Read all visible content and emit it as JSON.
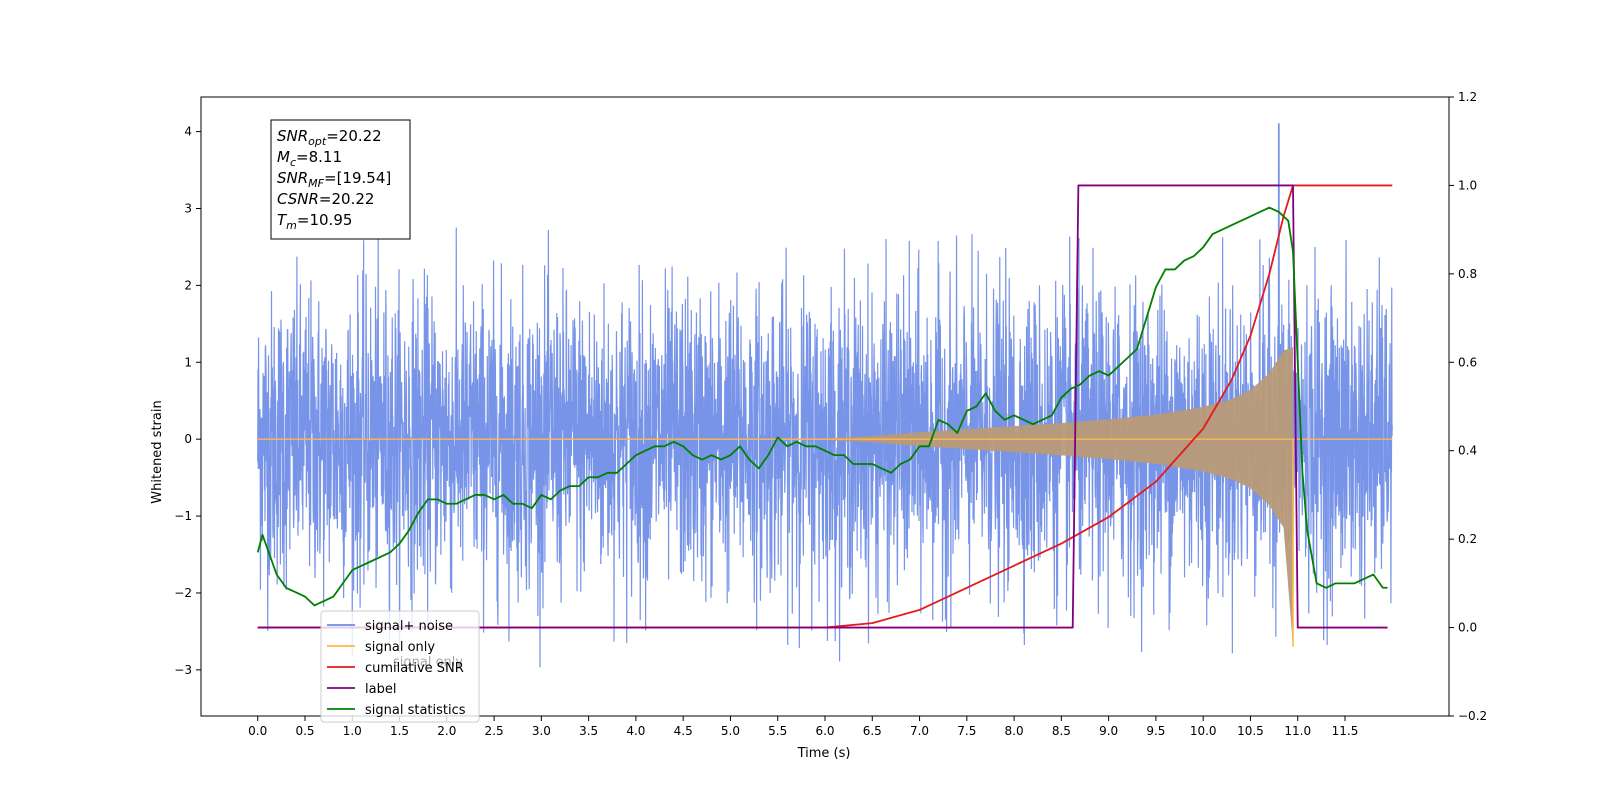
{
  "chart_data": {
    "type": "line",
    "xlabel": "Time (s)",
    "ylabel": "Whitened strain",
    "xlim": [
      -0.6,
      12.6
    ],
    "ylim": [
      -3.6,
      4.45
    ],
    "y2lim": [
      -0.2,
      1.2
    ],
    "x_ticks": [
      0.0,
      0.5,
      1.0,
      1.5,
      2.0,
      2.5,
      3.0,
      3.5,
      4.0,
      4.5,
      5.0,
      5.5,
      6.0,
      6.5,
      7.0,
      7.5,
      8.0,
      8.5,
      9.0,
      9.5,
      10.0,
      10.5,
      11.0,
      11.5
    ],
    "x_tick_labels": [
      "0.0",
      "0.5",
      "1.0",
      "1.5",
      "2.0",
      "2.5",
      "3.0",
      "3.5",
      "4.0",
      "4.5",
      "5.0",
      "5.5",
      "6.0",
      "6.5",
      "7.0",
      "7.5",
      "8.0",
      "8.5",
      "9.0",
      "9.5",
      "10.0",
      "10.5",
      "11.0",
      "11.5"
    ],
    "y_ticks": [
      -3,
      -2,
      -1,
      0,
      1,
      2,
      3,
      4
    ],
    "y_tick_labels": [
      "−3",
      "−2",
      "−1",
      "0",
      "1",
      "2",
      "3",
      "4"
    ],
    "y2_ticks": [
      -0.2,
      0.0,
      0.2,
      0.4,
      0.6,
      0.8,
      1.0,
      1.2
    ],
    "y2_tick_labels": [
      "−0.2",
      "0.0",
      "0.2",
      "0.4",
      "0.6",
      "0.8",
      "1.0",
      "1.2"
    ],
    "grid": false,
    "legend_position": "lower-left",
    "colors": {
      "signal_noise": "#6b8be6",
      "signal_only": "#ffb74d",
      "cumulative_snr": "#e41a1c",
      "label": "#800080",
      "statistics": "#008000"
    },
    "annotation": {
      "lines": [
        {
          "base": "SNR",
          "sub": "opt",
          "value": "=20.22"
        },
        {
          "base": "M",
          "sub": "c",
          "value": "=8.11"
        },
        {
          "base": "SNR",
          "sub": "MF",
          "value": "=[19.54]"
        },
        {
          "base": "CSNR",
          "sub": "",
          "value": "=20.22"
        },
        {
          "base": "T",
          "sub": "m",
          "value": "=10.95"
        }
      ]
    },
    "series": [
      {
        "name": "signal+ noise",
        "axis": "left",
        "note": "noisy whitened strain spanning 0 to 12 s, amplitude about -2.6 to 2.6 with peaks near 4.1 at 10.8 s",
        "x_range": [
          0.0,
          12.0
        ],
        "typical_amplitude": 1.2,
        "max_peak": {
          "x": 10.8,
          "y": 4.1
        }
      },
      {
        "name": "signal only",
        "axis": "left",
        "envelope": {
          "x": [
            0.0,
            6.0,
            6.5,
            7.0,
            7.5,
            8.0,
            8.5,
            9.0,
            9.5,
            10.0,
            10.3,
            10.5,
            10.7,
            10.85,
            10.95
          ],
          "y": [
            0.0,
            0.01,
            0.04,
            0.09,
            0.13,
            0.17,
            0.21,
            0.26,
            0.32,
            0.42,
            0.52,
            0.64,
            0.86,
            1.15,
            2.7
          ]
        },
        "end_x": 11.0
      },
      {
        "name": "cumilative SNR",
        "axis": "right",
        "x": [
          0.0,
          6.0,
          6.5,
          7.0,
          7.5,
          8.0,
          8.5,
          9.0,
          9.5,
          10.0,
          10.3,
          10.5,
          10.7,
          10.85,
          10.95,
          12.0
        ],
        "y": [
          0.0,
          0.0,
          0.01,
          0.04,
          0.09,
          0.14,
          0.19,
          0.25,
          0.33,
          0.45,
          0.56,
          0.66,
          0.8,
          0.93,
          1.0,
          1.0
        ]
      },
      {
        "name": "label",
        "axis": "right",
        "x": [
          0.0,
          8.62,
          8.68,
          10.95,
          11.0,
          11.95
        ],
        "y": [
          0.0,
          0.0,
          1.0,
          1.0,
          0.0,
          0.0
        ]
      },
      {
        "name": "signal statistics",
        "axis": "right",
        "x": [
          0.0,
          0.05,
          0.1,
          0.2,
          0.3,
          0.4,
          0.5,
          0.6,
          0.7,
          0.8,
          0.9,
          1.0,
          1.1,
          1.2,
          1.3,
          1.4,
          1.5,
          1.6,
          1.7,
          1.8,
          1.9,
          2.0,
          2.1,
          2.2,
          2.3,
          2.4,
          2.5,
          2.6,
          2.7,
          2.8,
          2.9,
          3.0,
          3.1,
          3.2,
          3.3,
          3.4,
          3.5,
          3.6,
          3.7,
          3.8,
          3.9,
          4.0,
          4.1,
          4.2,
          4.3,
          4.4,
          4.5,
          4.6,
          4.7,
          4.8,
          4.9,
          5.0,
          5.1,
          5.2,
          5.3,
          5.4,
          5.5,
          5.6,
          5.7,
          5.8,
          5.9,
          6.0,
          6.1,
          6.2,
          6.3,
          6.4,
          6.5,
          6.6,
          6.7,
          6.8,
          6.9,
          7.0,
          7.1,
          7.2,
          7.3,
          7.4,
          7.5,
          7.6,
          7.7,
          7.8,
          7.9,
          8.0,
          8.1,
          8.2,
          8.3,
          8.4,
          8.5,
          8.6,
          8.7,
          8.8,
          8.9,
          9.0,
          9.1,
          9.2,
          9.3,
          9.4,
          9.5,
          9.6,
          9.7,
          9.8,
          9.9,
          10.0,
          10.1,
          10.2,
          10.3,
          10.4,
          10.5,
          10.6,
          10.7,
          10.8,
          10.9,
          10.95,
          11.0,
          11.05,
          11.1,
          11.2,
          11.3,
          11.4,
          11.5,
          11.6,
          11.7,
          11.8,
          11.9,
          11.95
        ],
        "y": [
          0.17,
          0.21,
          0.18,
          0.12,
          0.09,
          0.08,
          0.07,
          0.05,
          0.06,
          0.07,
          0.1,
          0.13,
          0.14,
          0.15,
          0.16,
          0.17,
          0.19,
          0.22,
          0.26,
          0.29,
          0.29,
          0.28,
          0.28,
          0.29,
          0.3,
          0.3,
          0.29,
          0.3,
          0.28,
          0.28,
          0.27,
          0.3,
          0.29,
          0.31,
          0.32,
          0.32,
          0.34,
          0.34,
          0.35,
          0.35,
          0.37,
          0.39,
          0.4,
          0.41,
          0.41,
          0.42,
          0.41,
          0.39,
          0.38,
          0.39,
          0.38,
          0.39,
          0.41,
          0.38,
          0.36,
          0.39,
          0.43,
          0.41,
          0.42,
          0.41,
          0.41,
          0.4,
          0.39,
          0.39,
          0.37,
          0.37,
          0.37,
          0.36,
          0.35,
          0.37,
          0.38,
          0.41,
          0.41,
          0.47,
          0.46,
          0.44,
          0.49,
          0.5,
          0.53,
          0.49,
          0.47,
          0.48,
          0.47,
          0.46,
          0.47,
          0.48,
          0.52,
          0.54,
          0.55,
          0.57,
          0.58,
          0.57,
          0.59,
          0.61,
          0.63,
          0.7,
          0.77,
          0.81,
          0.81,
          0.83,
          0.84,
          0.86,
          0.89,
          0.9,
          0.91,
          0.92,
          0.93,
          0.94,
          0.95,
          0.94,
          0.92,
          0.85,
          0.6,
          0.35,
          0.22,
          0.1,
          0.09,
          0.1,
          0.1,
          0.1,
          0.11,
          0.12,
          0.09,
          0.09
        ]
      }
    ],
    "legend_entries": [
      "signal+ noise",
      "signal only",
      "cumilative SNR",
      "label",
      "signal statistics"
    ],
    "legend_ghost_text": "signal only"
  }
}
